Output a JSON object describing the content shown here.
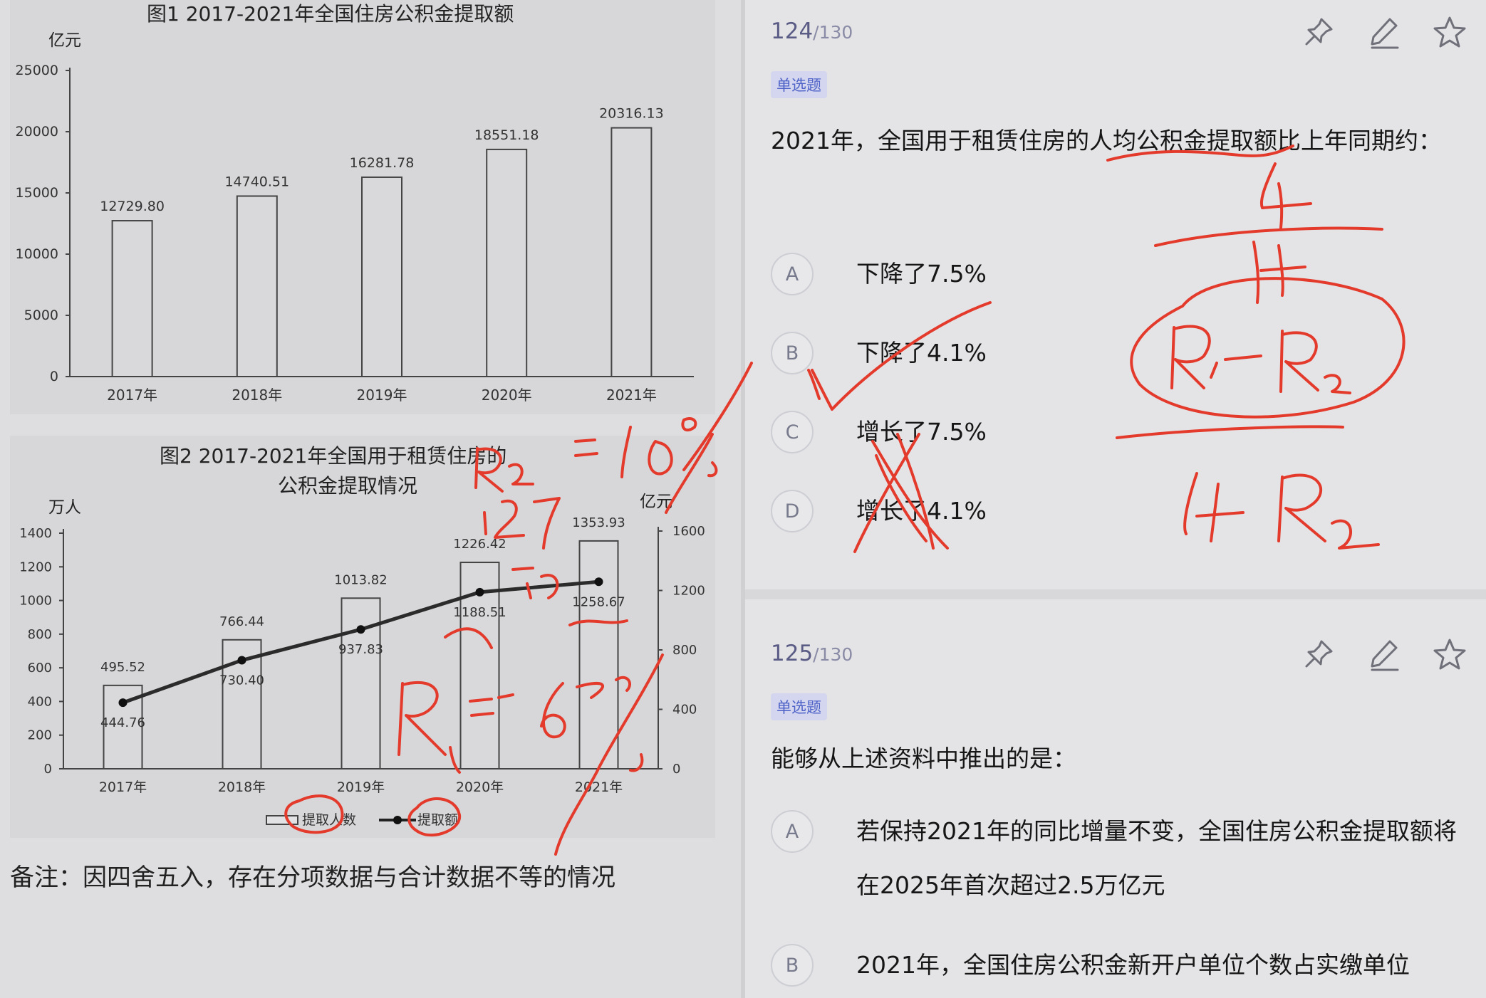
{
  "chart_data": [
    {
      "type": "bar",
      "title": "图1  2017-2021年全国住房公积金提取额",
      "ylabel": "亿元",
      "xlabel": "",
      "categories": [
        "2017年",
        "2018年",
        "2019年",
        "2020年",
        "2021年"
      ],
      "values": [
        12729.8,
        14740.51,
        16281.78,
        18551.18,
        20316.13
      ],
      "value_labels": [
        "12729.80",
        "14740.51",
        "16281.78",
        "18551.18",
        "20316.13"
      ],
      "ylim": [
        0,
        25000
      ],
      "yticks": [
        "0",
        "5000",
        "10000",
        "15000",
        "20000",
        "25000"
      ],
      "grid": false
    },
    {
      "type": "bar",
      "title_line1": "图2  2017-2021年全国用于租赁住房的",
      "title_line2": "公积金提取情况",
      "ylabel_left": "万人",
      "ylabel_right": "亿元",
      "categories": [
        "2017年",
        "2018年",
        "2019年",
        "2020年",
        "2021年"
      ],
      "ylim_left": [
        0,
        1400
      ],
      "ylim_right": [
        0,
        1600
      ],
      "yticks_left": [
        "0",
        "200",
        "400",
        "600",
        "800",
        "1000",
        "1200",
        "1400"
      ],
      "yticks_right": [
        "0",
        "400",
        "800",
        "1200",
        "1600"
      ],
      "series": [
        {
          "name": "提取人数",
          "type": "bar",
          "axis": "left",
          "values": [
            495.52,
            766.44,
            1013.82,
            1226.42,
            1353.93
          ],
          "labels": [
            "495.52",
            "766.44",
            "1013.82",
            "1226.42",
            "1353.93"
          ]
        },
        {
          "name": "提取额",
          "type": "line",
          "axis": "right",
          "values": [
            444.76,
            730.4,
            937.83,
            1188.51,
            1258.67
          ],
          "labels": [
            "444.76",
            "730.40",
            "937.83",
            "1188.51",
            "1258.67"
          ]
        }
      ],
      "legend": "bottom",
      "grid": false
    }
  ],
  "note": "备注：因四舍五入，存在分项数据与合计数据不等的情况",
  "questions": [
    {
      "counter": "124",
      "total": "/130",
      "badge": "单选题",
      "stem": "2021年，全国用于租赁住房的人均公积金提取额比上年同期约：",
      "options": [
        {
          "letter": "A",
          "text": "下降了7.5%"
        },
        {
          "letter": "B",
          "text": "下降了4.1%"
        },
        {
          "letter": "C",
          "text": "增长了7.5%"
        },
        {
          "letter": "D",
          "text": "增长了4.1%"
        }
      ]
    },
    {
      "counter": "125",
      "total": "/130",
      "badge": "单选题",
      "stem": "能够从上述资料中推出的是：",
      "options": [
        {
          "letter": "A",
          "text": "若保持2021年的同比增量不变，全国住房公积金提取额将在2025年首次超过2.5万亿元"
        },
        {
          "letter": "B",
          "text": "2021年，全国住房公积金新开户单位个数占实缴单位"
        }
      ]
    }
  ],
  "toolbar_icons": [
    "pin-icon",
    "edit-icon",
    "star-icon"
  ],
  "colors": {
    "badge_bg": "#d3d6ee",
    "badge_text": "#4e62c8",
    "counter": "#5a5c86",
    "ink": "#e33a2c"
  }
}
